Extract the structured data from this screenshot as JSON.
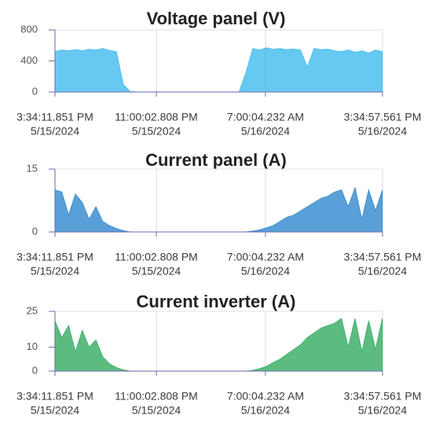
{
  "chart_data": [
    {
      "type": "area",
      "title": "Voltage panel (V)",
      "color": "#4cbfef",
      "grid": true,
      "ylim": [
        0,
        800
      ],
      "yticks": [
        0,
        400,
        800
      ],
      "xlim": [
        "2024-05-15T15:34:11.851",
        "2024-05-16T15:34:57.561"
      ],
      "xticks": [
        {
          "value": "2024-05-15T15:34:11.851",
          "label": [
            "3:34:11.851 PM",
            "5/15/2024"
          ]
        },
        {
          "value": "2024-05-15T23:00:02.808",
          "label": [
            "11:00:02.808 PM",
            "5/15/2024"
          ]
        },
        {
          "value": "2024-05-16T07:00:04.232",
          "label": [
            "7:00:04.232 AM",
            "5/16/2024"
          ]
        },
        {
          "value": "2024-05-16T15:34:57.561",
          "label": [
            "3:34:57.561 PM",
            "5/16/2024"
          ]
        }
      ],
      "x": [
        "2024-05-15T15:34:11.851",
        "2024-05-15T16:04:11.851",
        "2024-05-15T16:34:11.851",
        "2024-05-15T17:04:11.851",
        "2024-05-15T17:34:11.851",
        "2024-05-15T18:04:11.851",
        "2024-05-15T18:34:11.851",
        "2024-05-15T19:04:11.851",
        "2024-05-15T19:34:11.851",
        "2024-05-15T20:04:11.851",
        "2024-05-15T20:34:11.851",
        "2024-05-15T21:04:11.851",
        "2024-05-15T21:34:11.851",
        "2024-05-15T22:04:11.851",
        "2024-05-15T22:34:11.851",
        "2024-05-15T23:04:11.851",
        "2024-05-15T23:34:11.851",
        "2024-05-16T00:04:11.851",
        "2024-05-16T00:34:11.851",
        "2024-05-16T01:04:11.851",
        "2024-05-16T01:34:11.851",
        "2024-05-16T02:04:11.851",
        "2024-05-16T02:34:11.851",
        "2024-05-16T03:04:11.851",
        "2024-05-16T03:34:11.851",
        "2024-05-16T04:04:11.851",
        "2024-05-16T04:34:11.851",
        "2024-05-16T05:04:11.851",
        "2024-05-16T05:34:11.851",
        "2024-05-16T06:04:11.851",
        "2024-05-16T06:34:11.851",
        "2024-05-16T07:04:11.851",
        "2024-05-16T07:34:11.851",
        "2024-05-16T08:04:11.851",
        "2024-05-16T08:34:11.851",
        "2024-05-16T09:04:11.851",
        "2024-05-16T09:34:11.851",
        "2024-05-16T10:04:11.851",
        "2024-05-16T10:34:11.851",
        "2024-05-16T11:04:11.851",
        "2024-05-16T11:34:11.851",
        "2024-05-16T12:04:11.851",
        "2024-05-16T12:34:11.851",
        "2024-05-16T13:04:11.851",
        "2024-05-16T13:34:11.851",
        "2024-05-16T14:04:11.851",
        "2024-05-16T14:34:11.851",
        "2024-05-16T15:04:11.851",
        "2024-05-16T15:34:11.851"
      ],
      "values": [
        520,
        540,
        530,
        545,
        530,
        550,
        540,
        560,
        535,
        520,
        100,
        5,
        0,
        0,
        0,
        0,
        0,
        0,
        0,
        0,
        0,
        0,
        0,
        0,
        0,
        0,
        0,
        0,
        250,
        560,
        540,
        570,
        550,
        560,
        545,
        555,
        540,
        320,
        560,
        545,
        550,
        530,
        520,
        540,
        510,
        530,
        500,
        540,
        520
      ]
    },
    {
      "type": "area",
      "title": "Current panel (A)",
      "color": "#3d8fd1",
      "grid": true,
      "ylim": [
        0,
        15
      ],
      "yticks": [
        0,
        15
      ],
      "xlim": [
        "2024-05-15T15:34:11.851",
        "2024-05-16T15:34:57.561"
      ],
      "xticks": [
        {
          "value": "2024-05-15T15:34:11.851",
          "label": [
            "3:34:11.851 PM",
            "5/15/2024"
          ]
        },
        {
          "value": "2024-05-15T23:00:02.808",
          "label": [
            "11:00:02.808 PM",
            "5/15/2024"
          ]
        },
        {
          "value": "2024-05-16T07:00:04.232",
          "label": [
            "7:00:04.232 AM",
            "5/16/2024"
          ]
        },
        {
          "value": "2024-05-16T15:34:57.561",
          "label": [
            "3:34:57.561 PM",
            "5/16/2024"
          ]
        }
      ],
      "x": [
        "2024-05-15T15:34:11.851",
        "2024-05-15T16:04:11.851",
        "2024-05-15T16:34:11.851",
        "2024-05-15T17:04:11.851",
        "2024-05-15T17:34:11.851",
        "2024-05-15T18:04:11.851",
        "2024-05-15T18:34:11.851",
        "2024-05-15T19:04:11.851",
        "2024-05-15T19:34:11.851",
        "2024-05-15T20:04:11.851",
        "2024-05-15T20:34:11.851",
        "2024-05-15T21:04:11.851",
        "2024-05-15T21:34:11.851",
        "2024-05-15T22:04:11.851",
        "2024-05-15T22:34:11.851",
        "2024-05-15T23:04:11.851",
        "2024-05-15T23:34:11.851",
        "2024-05-16T00:04:11.851",
        "2024-05-16T00:34:11.851",
        "2024-05-16T01:04:11.851",
        "2024-05-16T01:34:11.851",
        "2024-05-16T02:04:11.851",
        "2024-05-16T02:34:11.851",
        "2024-05-16T03:04:11.851",
        "2024-05-16T03:34:11.851",
        "2024-05-16T04:04:11.851",
        "2024-05-16T04:34:11.851",
        "2024-05-16T05:04:11.851",
        "2024-05-16T05:34:11.851",
        "2024-05-16T06:04:11.851",
        "2024-05-16T06:34:11.851",
        "2024-05-16T07:04:11.851",
        "2024-05-16T07:34:11.851",
        "2024-05-16T08:04:11.851",
        "2024-05-16T08:34:11.851",
        "2024-05-16T09:04:11.851",
        "2024-05-16T09:34:11.851",
        "2024-05-16T10:04:11.851",
        "2024-05-16T10:34:11.851",
        "2024-05-16T11:04:11.851",
        "2024-05-16T11:34:11.851",
        "2024-05-16T12:04:11.851",
        "2024-05-16T12:34:11.851",
        "2024-05-16T13:04:11.851",
        "2024-05-16T13:34:11.851",
        "2024-05-16T14:04:11.851",
        "2024-05-16T14:34:11.851",
        "2024-05-16T15:04:11.851",
        "2024-05-16T15:34:11.851"
      ],
      "values": [
        10,
        9.5,
        4,
        9,
        7,
        3,
        6,
        2.5,
        1.5,
        0.8,
        0.3,
        0,
        0,
        0,
        0,
        0,
        0,
        0,
        0,
        0,
        0,
        0,
        0,
        0,
        0,
        0,
        0,
        0,
        0,
        0.2,
        0.5,
        1,
        1.5,
        2.5,
        3.5,
        4,
        5,
        6,
        7,
        8,
        8.5,
        9.5,
        10,
        6,
        10.5,
        3,
        10,
        5,
        10
      ]
    },
    {
      "type": "area",
      "title": "Current inverter (A)",
      "color": "#3fb06a",
      "grid": true,
      "ylim": [
        0,
        25
      ],
      "yticks": [
        0,
        10,
        25
      ],
      "xlim": [
        "2024-05-15T15:34:11.851",
        "2024-05-16T15:34:57.561"
      ],
      "xticks": [
        {
          "value": "2024-05-15T15:34:11.851",
          "label": [
            "3:34:11.851 PM",
            "5/15/2024"
          ]
        },
        {
          "value": "2024-05-15T23:00:02.808",
          "label": [
            "11:00:02.808 PM",
            "5/15/2024"
          ]
        },
        {
          "value": "2024-05-16T07:00:04.232",
          "label": [
            "7:00:04.232 AM",
            "5/16/2024"
          ]
        },
        {
          "value": "2024-05-16T15:34:57.561",
          "label": [
            "3:34:57.561 PM",
            "5/16/2024"
          ]
        }
      ],
      "x": [
        "2024-05-15T15:34:11.851",
        "2024-05-15T16:04:11.851",
        "2024-05-15T16:34:11.851",
        "2024-05-15T17:04:11.851",
        "2024-05-15T17:34:11.851",
        "2024-05-15T18:04:11.851",
        "2024-05-15T18:34:11.851",
        "2024-05-15T19:04:11.851",
        "2024-05-15T19:34:11.851",
        "2024-05-15T20:04:11.851",
        "2024-05-15T20:34:11.851",
        "2024-05-15T21:04:11.851",
        "2024-05-15T21:34:11.851",
        "2024-05-15T22:04:11.851",
        "2024-05-15T22:34:11.851",
        "2024-05-15T23:04:11.851",
        "2024-05-15T23:34:11.851",
        "2024-05-16T00:04:11.851",
        "2024-05-16T00:34:11.851",
        "2024-05-16T01:04:11.851",
        "2024-05-16T01:34:11.851",
        "2024-05-16T02:04:11.851",
        "2024-05-16T02:34:11.851",
        "2024-05-16T03:04:11.851",
        "2024-05-16T03:34:11.851",
        "2024-05-16T04:04:11.851",
        "2024-05-16T04:34:11.851",
        "2024-05-16T05:04:11.851",
        "2024-05-16T05:34:11.851",
        "2024-05-16T06:04:11.851",
        "2024-05-16T06:34:11.851",
        "2024-05-16T07:04:11.851",
        "2024-05-16T07:34:11.851",
        "2024-05-16T08:04:11.851",
        "2024-05-16T08:34:11.851",
        "2024-05-16T09:04:11.851",
        "2024-05-16T09:34:11.851",
        "2024-05-16T10:04:11.851",
        "2024-05-16T10:34:11.851",
        "2024-05-16T11:04:11.851",
        "2024-05-16T11:34:11.851",
        "2024-05-16T12:04:11.851",
        "2024-05-16T12:34:11.851",
        "2024-05-16T13:04:11.851",
        "2024-05-16T13:34:11.851",
        "2024-05-16T14:04:11.851",
        "2024-05-16T14:34:11.851",
        "2024-05-16T15:04:11.851",
        "2024-05-16T15:34:11.851"
      ],
      "values": [
        21,
        14,
        19,
        8,
        17,
        10,
        13,
        6,
        3,
        1.5,
        0.5,
        0,
        0,
        0,
        0,
        0,
        0,
        0,
        0,
        0,
        0,
        0,
        0,
        0,
        0,
        0,
        0,
        0,
        0,
        0.3,
        1,
        2,
        3.5,
        5,
        7,
        9,
        11,
        14,
        16,
        18,
        19,
        20,
        22,
        10,
        22,
        8,
        21,
        9,
        22
      ]
    }
  ]
}
